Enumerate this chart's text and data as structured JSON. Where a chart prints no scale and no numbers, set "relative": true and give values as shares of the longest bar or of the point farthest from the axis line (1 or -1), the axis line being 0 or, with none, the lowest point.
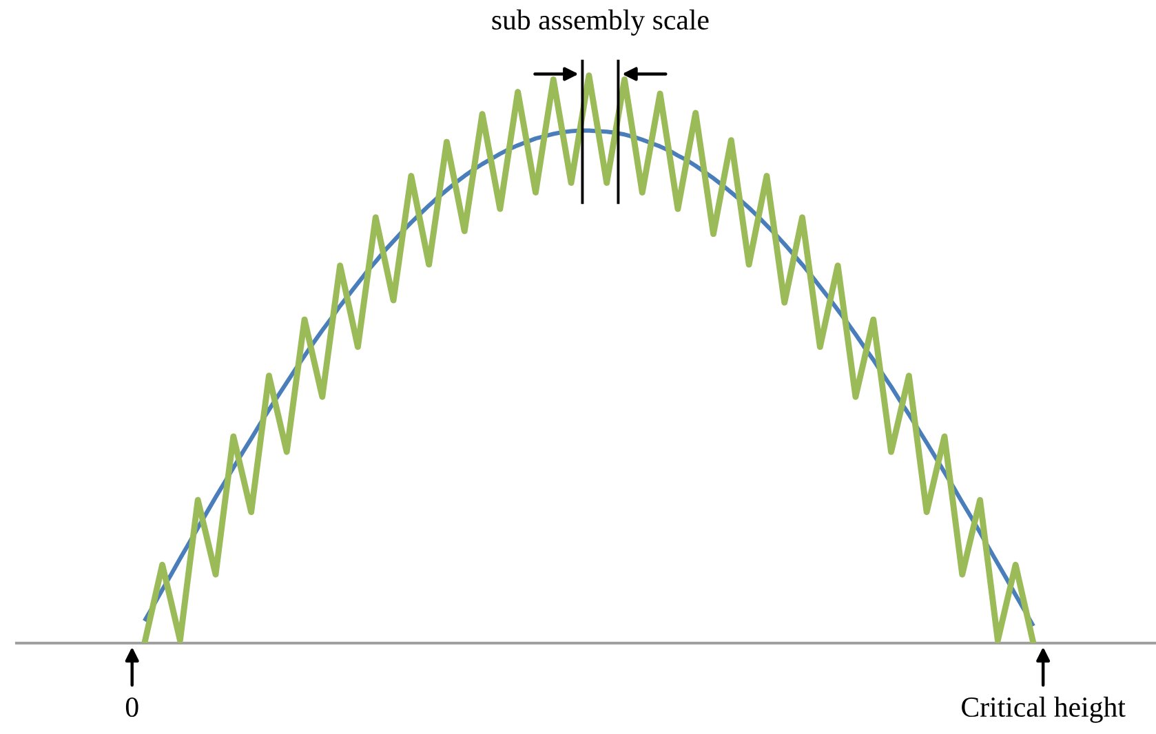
{
  "chart_data": {
    "type": "line",
    "relative": true,
    "categories": [
      null,
      null,
      null,
      null,
      null,
      null,
      null,
      null,
      null,
      null,
      null,
      null,
      null,
      null,
      null,
      null,
      null,
      null,
      null,
      null,
      null,
      null,
      null,
      null,
      null,
      null,
      null,
      null,
      null,
      null,
      null,
      null,
      null,
      null,
      null,
      null,
      null,
      null,
      null,
      null,
      null,
      null,
      null,
      null,
      null,
      null,
      null,
      null,
      null,
      null,
      null,
      null,
      null,
      null,
      null,
      null,
      null,
      null,
      null,
      null,
      null,
      null,
      null,
      null,
      null,
      null,
      null,
      null,
      null,
      null,
      null,
      null,
      null,
      null,
      null,
      null,
      null,
      null,
      null,
      null,
      null,
      null,
      null,
      null,
      null,
      null,
      null,
      null,
      null,
      null,
      null,
      null,
      null,
      null,
      null,
      null,
      null,
      null,
      null,
      null,
      null
    ],
    "annotations": [
      "sub assembly scale",
      "0",
      "Critical height"
    ],
    "series": [
      {
        "color": "#4a7ebb",
        "values": [
          0.039,
          0.066,
          0.094,
          0.121,
          0.149,
          0.176,
          0.203,
          0.23,
          0.257,
          0.283,
          0.309,
          0.335,
          0.36,
          0.386,
          0.411,
          0.435,
          0.459,
          0.483,
          0.506,
          0.529,
          0.551,
          0.572,
          0.594,
          0.614,
          0.634,
          0.654,
          0.672,
          0.691,
          0.708,
          0.725,
          0.741,
          0.756,
          0.771,
          0.785,
          0.798,
          0.811,
          0.823,
          0.834,
          0.844,
          0.853,
          0.862,
          0.87,
          0.877,
          0.883,
          0.889,
          0.893,
          0.897,
          0.9,
          0.902,
          0.903,
          0.903,
          0.902,
          0.901,
          0.899,
          0.896,
          0.892,
          0.887,
          0.881,
          0.875,
          0.868,
          0.859,
          0.851,
          0.841,
          0.83,
          0.819,
          0.807,
          0.794,
          0.781,
          0.767,
          0.752,
          0.736,
          0.72,
          0.703,
          0.685,
          0.667,
          0.648,
          0.628,
          0.608,
          0.587,
          0.566,
          0.544,
          0.521,
          0.499,
          0.475,
          0.452,
          0.427,
          0.403,
          0.378,
          0.353,
          0.327,
          0.301,
          0.275,
          0.248,
          0.222,
          0.195,
          0.167,
          0.14,
          0.113,
          0.085,
          0.058,
          0.03
        ]
      },
      {
        "color": "#9bbb59",
        "values": [
          0,
          0.069,
          0.138,
          0.072,
          0.005,
          0.129,
          0.252,
          0.187,
          0.121,
          0.243,
          0.364,
          0.298,
          0.231,
          0.351,
          0.471,
          0.404,
          0.337,
          0.454,
          0.57,
          0.502,
          0.434,
          0.55,
          0.665,
          0.594,
          0.522,
          0.636,
          0.75,
          0.677,
          0.604,
          0.714,
          0.823,
          0.745,
          0.667,
          0.775,
          0.883,
          0.805,
          0.726,
          0.829,
          0.932,
          0.849,
          0.765,
          0.868,
          0.971,
          0.883,
          0.794,
          0.894,
          0.993,
          0.902,
          0.811,
          0.906,
          1.0,
          0.906,
          0.811,
          0.902,
          0.993,
          0.894,
          0.794,
          0.881,
          0.968,
          0.867,
          0.765,
          0.85,
          0.934,
          0.828,
          0.721,
          0.804,
          0.886,
          0.777,
          0.667,
          0.745,
          0.823,
          0.712,
          0.6,
          0.675,
          0.75,
          0.636,
          0.522,
          0.594,
          0.665,
          0.55,
          0.434,
          0.502,
          0.57,
          0.454,
          0.337,
          0.404,
          0.471,
          0.351,
          0.231,
          0.298,
          0.364,
          0.243,
          0.121,
          0.187,
          0.252,
          0.129,
          0.005,
          0.072,
          0.138,
          0.069,
          0
        ]
      }
    ]
  }
}
